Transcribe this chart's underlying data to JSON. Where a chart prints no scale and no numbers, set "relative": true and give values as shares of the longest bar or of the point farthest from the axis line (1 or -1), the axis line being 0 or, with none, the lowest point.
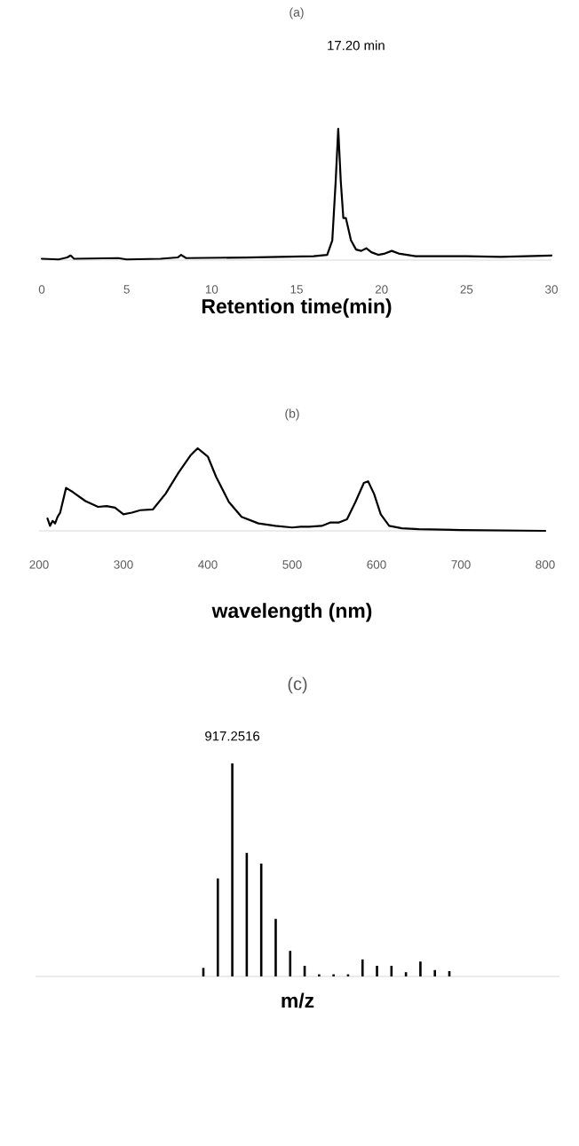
{
  "chart_data": [
    {
      "type": "line",
      "title": "(a)",
      "xlabel": "Retention time(min)",
      "relative": true,
      "color": "#000000",
      "xlim": [
        0,
        30
      ],
      "xticks": [
        0,
        5,
        10,
        15,
        20,
        25,
        30
      ],
      "x": [
        0,
        1,
        1.5,
        1.7,
        1.9,
        4.5,
        5,
        7,
        8,
        8.2,
        8.5,
        12,
        16,
        16.8,
        17.1,
        17.3,
        17.45,
        17.6,
        17.75,
        17.9,
        18.2,
        18.5,
        18.8,
        19.1,
        19.4,
        19.8,
        20.2,
        20.6,
        21,
        22,
        25,
        27,
        30
      ],
      "values": [
        0.01,
        0.005,
        0.02,
        0.035,
        0.01,
        0.015,
        0.005,
        0.01,
        0.02,
        0.04,
        0.015,
        0.02,
        0.03,
        0.04,
        0.15,
        0.6,
        1.0,
        0.6,
        0.32,
        0.32,
        0.15,
        0.08,
        0.07,
        0.09,
        0.06,
        0.04,
        0.05,
        0.07,
        0.05,
        0.03,
        0.03,
        0.025,
        0.035
      ],
      "annotations": [
        "17.20 min"
      ]
    },
    {
      "type": "line",
      "title": "(b)",
      "xlabel": "wavelength (nm)",
      "relative": true,
      "color": "#000000",
      "xlim": [
        200,
        800
      ],
      "xticks": [
        200,
        300,
        400,
        500,
        600,
        700,
        800
      ],
      "x": [
        210,
        213,
        216,
        219,
        222,
        225,
        232,
        240,
        255,
        270,
        280,
        290,
        300,
        310,
        320,
        335,
        350,
        365,
        380,
        388,
        400,
        410,
        425,
        440,
        460,
        480,
        500,
        510,
        520,
        535,
        545,
        555,
        565,
        575,
        585,
        590,
        597,
        605,
        615,
        630,
        650,
        700,
        800
      ],
      "values": [
        0.15,
        0.06,
        0.12,
        0.09,
        0.17,
        0.22,
        0.52,
        0.47,
        0.36,
        0.29,
        0.3,
        0.28,
        0.2,
        0.22,
        0.25,
        0.26,
        0.45,
        0.7,
        0.92,
        1.0,
        0.9,
        0.65,
        0.35,
        0.17,
        0.09,
        0.06,
        0.04,
        0.05,
        0.05,
        0.06,
        0.1,
        0.1,
        0.14,
        0.35,
        0.58,
        0.6,
        0.45,
        0.2,
        0.06,
        0.03,
        0.02,
        0.01,
        0.0
      ]
    },
    {
      "type": "bar",
      "title": "(c)",
      "xlabel": "m/z",
      "relative": true,
      "color": "#000000",
      "categories": [
        null,
        null,
        null,
        null,
        null,
        null,
        null,
        null,
        null,
        null,
        null,
        null,
        null,
        null,
        null,
        null,
        null,
        null
      ],
      "values": [
        0.04,
        0.46,
        1.0,
        0.58,
        0.53,
        0.27,
        0.12,
        0.05,
        0.01,
        0.01,
        0.01,
        0.08,
        0.05,
        0.05,
        0.02,
        0.07,
        0.03,
        0.025
      ],
      "annotations": [
        "917.2516"
      ]
    }
  ]
}
